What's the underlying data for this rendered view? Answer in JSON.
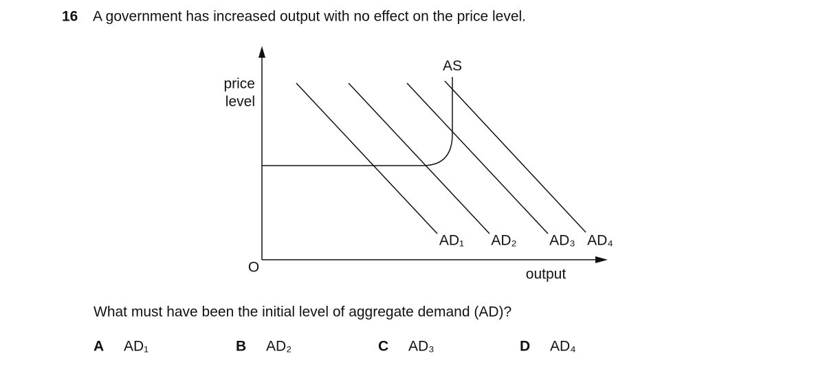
{
  "question": {
    "number": "16",
    "text": "A government has increased output with no effect on the price level.",
    "prompt": "What must have been the initial level of aggregate demand (AD)?"
  },
  "diagram": {
    "y_axis_label": [
      "price",
      "level"
    ],
    "x_axis_label": "output",
    "origin": "O",
    "supply_label": "AS",
    "demand_labels": [
      "AD₁",
      "AD₂",
      "AD₃",
      "AD₄"
    ]
  },
  "options": [
    {
      "letter": "A",
      "text": "AD₁"
    },
    {
      "letter": "B",
      "text": "AD₂"
    },
    {
      "letter": "C",
      "text": "AD₃"
    },
    {
      "letter": "D",
      "text": "AD₄"
    }
  ]
}
